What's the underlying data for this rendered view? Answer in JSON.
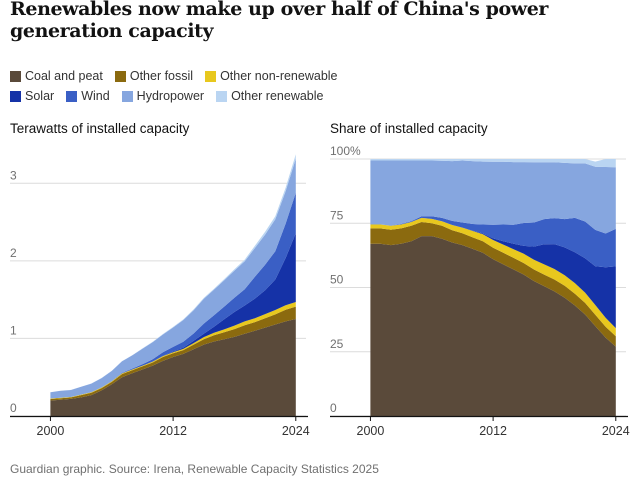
{
  "title": "Renewables now make up over half of China's power generation capacity",
  "legend": {
    "row1": [
      {
        "label": "Coal and peat",
        "color": "#5a4a3a"
      },
      {
        "label": "Other fossil",
        "color": "#8b6a0f"
      },
      {
        "label": "Other non-renewable",
        "color": "#e8c81e"
      }
    ],
    "row2": [
      {
        "label": "Solar",
        "color": "#1532a7"
      },
      {
        "label": "Wind",
        "color": "#3a5fc5"
      },
      {
        "label": "Hydropower",
        "color": "#86a6df"
      },
      {
        "label": "Other renewable",
        "color": "#bad5f2"
      }
    ]
  },
  "source": "Guardian graphic. Source: Irena, Renewable Capacity Statistics 2025",
  "chart_data": [
    {
      "type": "area",
      "stacked": true,
      "title": "Terawatts of installed capacity",
      "xlim": [
        1998,
        2025
      ],
      "ylim": [
        0,
        3.3
      ],
      "yticks": [
        {
          "v": 0,
          "label": "0"
        },
        {
          "v": 1,
          "label": "1"
        },
        {
          "v": 2,
          "label": "2"
        },
        {
          "v": 3,
          "label": "3"
        }
      ],
      "xticks": [
        {
          "v": 2000,
          "label": "2000"
        },
        {
          "v": 2012,
          "label": "2012"
        },
        {
          "v": 2024,
          "label": "2024"
        }
      ],
      "grid": true,
      "x": [
        2000,
        2001,
        2002,
        2003,
        2004,
        2005,
        2006,
        2007,
        2008,
        2009,
        2010,
        2011,
        2012,
        2013,
        2014,
        2015,
        2016,
        2017,
        2018,
        2019,
        2020,
        2021,
        2022,
        2023,
        2024
      ],
      "series": [
        {
          "name": "Coal and peat",
          "color": "#5a4a3a",
          "values": [
            0.2,
            0.21,
            0.22,
            0.24,
            0.27,
            0.33,
            0.41,
            0.5,
            0.55,
            0.6,
            0.65,
            0.71,
            0.76,
            0.8,
            0.86,
            0.92,
            0.96,
            0.99,
            1.02,
            1.06,
            1.1,
            1.14,
            1.18,
            1.22,
            1.25
          ]
        },
        {
          "name": "Other fossil",
          "color": "#8b6a0f",
          "values": [
            0.02,
            0.02,
            0.02,
            0.03,
            0.03,
            0.03,
            0.03,
            0.04,
            0.04,
            0.04,
            0.04,
            0.05,
            0.05,
            0.05,
            0.06,
            0.07,
            0.08,
            0.09,
            0.1,
            0.11,
            0.11,
            0.12,
            0.13,
            0.15,
            0.16
          ]
        },
        {
          "name": "Other non-renewable",
          "color": "#e8c81e",
          "values": [
            0.005,
            0.005,
            0.005,
            0.006,
            0.007,
            0.008,
            0.008,
            0.009,
            0.009,
            0.009,
            0.011,
            0.012,
            0.013,
            0.015,
            0.02,
            0.027,
            0.034,
            0.036,
            0.045,
            0.049,
            0.05,
            0.053,
            0.056,
            0.057,
            0.06
          ]
        },
        {
          "name": "Solar",
          "color": "#1532a7",
          "values": [
            0,
            0,
            0,
            0,
            0,
            0,
            0,
            0,
            0,
            0,
            0.001,
            0.003,
            0.007,
            0.016,
            0.028,
            0.043,
            0.077,
            0.13,
            0.175,
            0.205,
            0.253,
            0.307,
            0.393,
            0.609,
            0.887
          ]
        },
        {
          "name": "Wind",
          "color": "#3a5fc5",
          "values": [
            0,
            0,
            0,
            0,
            0.001,
            0.001,
            0.003,
            0.006,
            0.012,
            0.018,
            0.03,
            0.046,
            0.061,
            0.076,
            0.096,
            0.131,
            0.148,
            0.164,
            0.184,
            0.21,
            0.282,
            0.329,
            0.366,
            0.441,
            0.521
          ]
        },
        {
          "name": "Hydropower",
          "color": "#86a6df",
          "values": [
            0.08,
            0.09,
            0.09,
            0.1,
            0.11,
            0.12,
            0.13,
            0.15,
            0.17,
            0.2,
            0.22,
            0.23,
            0.25,
            0.28,
            0.3,
            0.32,
            0.33,
            0.34,
            0.35,
            0.36,
            0.37,
            0.39,
            0.41,
            0.42,
            0.44
          ]
        },
        {
          "name": "Other renewable",
          "color": "#bad5f2",
          "values": [
            0.001,
            0.001,
            0.001,
            0.001,
            0.001,
            0.002,
            0.002,
            0.003,
            0.003,
            0.004,
            0.005,
            0.006,
            0.007,
            0.008,
            0.01,
            0.011,
            0.012,
            0.015,
            0.018,
            0.022,
            0.03,
            0.035,
            0.04,
            0.045,
            0.055
          ]
        }
      ]
    },
    {
      "type": "area",
      "stacked": true,
      "title": "Share of installed capacity",
      "xlim": [
        1998,
        2025
      ],
      "ylim": [
        0,
        100
      ],
      "yticks": [
        {
          "v": 0,
          "label": "0"
        },
        {
          "v": 25,
          "label": "25"
        },
        {
          "v": 50,
          "label": "50"
        },
        {
          "v": 75,
          "label": "75"
        },
        {
          "v": 100,
          "label": "100%"
        }
      ],
      "xticks": [
        {
          "v": 2000,
          "label": "2000"
        },
        {
          "v": 2012,
          "label": "2012"
        },
        {
          "v": 2024,
          "label": "2024"
        }
      ],
      "grid": true,
      "x": [
        2000,
        2001,
        2002,
        2003,
        2004,
        2005,
        2006,
        2007,
        2008,
        2009,
        2010,
        2011,
        2012,
        2013,
        2014,
        2015,
        2016,
        2017,
        2018,
        2019,
        2020,
        2021,
        2022,
        2023,
        2024
      ],
      "series": [
        {
          "name": "Coal and peat",
          "color": "#5a4a3a",
          "values": [
            67,
            67,
            66.5,
            67,
            68,
            70,
            70,
            69,
            67.5,
            66.5,
            65,
            63.5,
            61,
            59,
            57,
            55,
            52.5,
            50.5,
            48.5,
            46,
            43,
            39.5,
            35,
            30.5,
            27
          ]
        },
        {
          "name": "Other fossil",
          "color": "#8b6a0f",
          "values": [
            6,
            6,
            6,
            6,
            6,
            5.5,
            5,
            5,
            4.8,
            4.6,
            4.5,
            4.5,
            4.5,
            4.5,
            4.5,
            4.5,
            4.5,
            4.5,
            4.6,
            4.7,
            4.6,
            4.5,
            4.4,
            4.2,
            4
          ]
        },
        {
          "name": "Other non-renewable",
          "color": "#e8c81e",
          "values": [
            1.5,
            1.5,
            1.5,
            1.5,
            1.5,
            1.6,
            1.7,
            1.8,
            2,
            2.2,
            2.5,
            2.7,
            3,
            3.2,
            3.4,
            3.6,
            3.8,
            4,
            4.1,
            4.1,
            4.1,
            4,
            3.8,
            3.5,
            3.2
          ]
        },
        {
          "name": "Solar",
          "color": "#1532a7",
          "values": [
            0,
            0,
            0,
            0,
            0,
            0,
            0,
            0,
            0,
            0,
            0.1,
            0.3,
            0.6,
            1.3,
            2.1,
            3.1,
            5.1,
            7.8,
            9.7,
            10.8,
            12,
            13.4,
            15.1,
            19.7,
            24
          ]
        },
        {
          "name": "Wind",
          "color": "#3a5fc5",
          "values": [
            0,
            0,
            0.1,
            0.2,
            0.3,
            0.6,
            1,
            1.3,
            1.6,
            2,
            2.6,
            3.5,
            5.3,
            6.5,
            7.4,
            8.9,
            9.4,
            9.8,
            10.1,
            11,
            13.4,
            14.3,
            14.1,
            13.1,
            14.6
          ]
        },
        {
          "name": "Hydropower",
          "color": "#86a6df",
          "values": [
            24.9,
            24.9,
            25.3,
            24.7,
            23.6,
            21.7,
            21.7,
            22.2,
            23.3,
            24.1,
            24.5,
            24.5,
            24.5,
            24.4,
            24.4,
            23.7,
            23.4,
            22.1,
            21.7,
            21.9,
            21.2,
            22.6,
            24.6,
            25.9,
            24
          ]
        },
        {
          "name": "Other renewable",
          "color": "#bad5f2",
          "values": [
            0.6,
            0.6,
            0.6,
            0.6,
            0.6,
            0.6,
            0.6,
            0.7,
            0.8,
            0.6,
            0.8,
            1,
            1.1,
            1.1,
            1.2,
            1.2,
            1.3,
            1.3,
            1.3,
            1.5,
            1.7,
            1.7,
            2,
            3.1,
            3.2
          ]
        }
      ]
    }
  ]
}
